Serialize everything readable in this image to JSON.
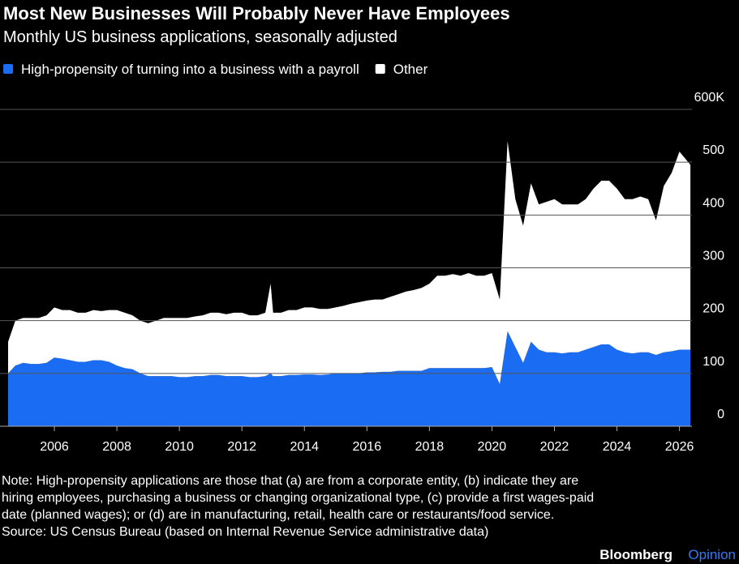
{
  "chart_data": {
    "type": "stacked-area",
    "title": "Most New Businesses Will Probably Never Have Employees",
    "subtitle": "Monthly US business applications, seasonally adjusted",
    "x": [
      2004.52,
      2004.75,
      2005,
      2005.25,
      2005.5,
      2005.75,
      2006,
      2006.25,
      2006.5,
      2006.75,
      2007,
      2007.25,
      2007.5,
      2007.75,
      2008,
      2008.25,
      2008.5,
      2008.75,
      2009,
      2009.25,
      2009.5,
      2009.75,
      2010,
      2010.25,
      2010.5,
      2010.75,
      2011,
      2011.25,
      2011.5,
      2011.75,
      2012,
      2012.25,
      2012.5,
      2012.75,
      2012.92,
      2013,
      2013.25,
      2013.5,
      2013.75,
      2014,
      2014.25,
      2014.5,
      2014.75,
      2015,
      2015.25,
      2015.5,
      2015.75,
      2016,
      2016.25,
      2016.5,
      2016.75,
      2017,
      2017.25,
      2017.5,
      2017.75,
      2018,
      2018.25,
      2018.5,
      2018.75,
      2019,
      2019.25,
      2019.5,
      2019.75,
      2020,
      2020.25,
      2020.5,
      2020.75,
      2021,
      2021.25,
      2021.5,
      2021.75,
      2022,
      2022.25,
      2022.5,
      2022.75,
      2023,
      2023.25,
      2023.5,
      2023.75,
      2024,
      2024.25,
      2024.5,
      2024.75,
      2025,
      2025.25,
      2025.5,
      2025.75,
      2026,
      2026.35
    ],
    "series": [
      {
        "name": "High-propensity of turning into a business with a payroll",
        "color": "#1a6df2",
        "values": [
          100,
          115,
          120,
          118,
          118,
          120,
          130,
          128,
          125,
          122,
          122,
          125,
          125,
          122,
          115,
          110,
          108,
          100,
          95,
          95,
          95,
          95,
          93,
          93,
          95,
          95,
          97,
          97,
          95,
          95,
          95,
          93,
          93,
          95,
          100,
          95,
          95,
          97,
          97,
          98,
          98,
          97,
          98,
          100,
          100,
          100,
          100,
          102,
          102,
          103,
          103,
          105,
          105,
          105,
          105,
          110,
          110,
          110,
          110,
          110,
          110,
          110,
          110,
          112,
          80,
          180,
          150,
          120,
          160,
          145,
          140,
          140,
          138,
          140,
          140,
          145,
          150,
          155,
          155,
          145,
          140,
          138,
          140,
          140,
          135,
          140,
          142,
          145,
          145
        ]
      },
      {
        "name": "Other",
        "color": "#ffffff",
        "values": [
          60,
          85,
          85,
          87,
          87,
          90,
          95,
          92,
          95,
          93,
          93,
          95,
          93,
          98,
          105,
          105,
          102,
          100,
          100,
          105,
          110,
          110,
          112,
          112,
          113,
          115,
          118,
          118,
          117,
          120,
          120,
          117,
          117,
          120,
          170,
          120,
          120,
          123,
          123,
          127,
          127,
          125,
          124,
          125,
          128,
          132,
          135,
          136,
          138,
          137,
          142,
          145,
          150,
          153,
          157,
          160,
          175,
          175,
          178,
          175,
          180,
          175,
          175,
          178,
          160,
          360,
          280,
          260,
          300,
          275,
          285,
          290,
          282,
          280,
          280,
          285,
          300,
          310,
          310,
          305,
          290,
          292,
          295,
          290,
          255,
          315,
          338,
          375,
          350
        ]
      }
    ],
    "xlim": [
      2004.52,
      2026.4
    ],
    "xticks": [
      2006,
      2008,
      2010,
      2012,
      2014,
      2016,
      2018,
      2020,
      2022,
      2024,
      2026
    ],
    "ylim": [
      0,
      600
    ],
    "yticks": [
      0,
      100,
      200,
      300,
      400,
      500,
      {
        "value": 600,
        "label": "600K"
      }
    ],
    "grid": true,
    "note": [
      "Note: High-propensity applications are those that (a) are from a corporate entity, (b) indicate they are",
      "hiring employees, purchasing a business or changing organizational type, (c) provide a first wages-paid",
      "date (planned wages); or (d) are in manufacturing, retail, health care or restaurants/food service."
    ],
    "source": "Source: US Census Bureau (based on Internal Revenue Service administrative data)",
    "brand": [
      "Bloomberg",
      "Opinion"
    ]
  }
}
